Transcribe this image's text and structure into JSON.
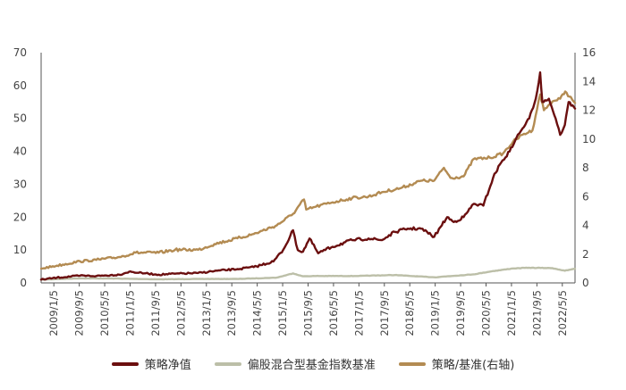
{
  "chart_data": {
    "type": "line",
    "x_tick_labels": [
      "2009/1/5",
      "2009/9/5",
      "2010/5/5",
      "2011/1/5",
      "2011/9/5",
      "2012/5/5",
      "2013/1/5",
      "2013/9/5",
      "2014/5/5",
      "2015/1/5",
      "2015/9/5",
      "2016/5/5",
      "2017/1/5",
      "2017/9/5",
      "2018/5/5",
      "2019/1/5",
      "2019/9/5",
      "2020/5/5",
      "2021/1/5",
      "2021/9/5",
      "2022/5/5"
    ],
    "x_range": [
      "2009-01-05",
      "2022-07-31"
    ],
    "y_left": {
      "ticks": [
        0,
        10,
        20,
        30,
        40,
        50,
        60,
        70
      ],
      "lim": [
        0,
        70
      ]
    },
    "y_right": {
      "ticks": [
        0,
        2,
        4,
        6,
        8,
        10,
        12,
        14,
        16
      ],
      "lim": [
        0,
        16
      ]
    },
    "series": [
      {
        "name": "策略净值",
        "axis": "left",
        "color": "#6b0f0f",
        "points": [
          [
            "2009-01-05",
            1.0
          ],
          [
            "2009-06-01",
            1.6
          ],
          [
            "2010-01-01",
            2.2
          ],
          [
            "2010-06-01",
            2.1
          ],
          [
            "2011-01-01",
            2.5
          ],
          [
            "2011-04-01",
            3.4
          ],
          [
            "2011-09-01",
            2.9
          ],
          [
            "2012-01-01",
            2.5
          ],
          [
            "2012-06-01",
            2.8
          ],
          [
            "2013-01-01",
            3.0
          ],
          [
            "2013-06-01",
            3.6
          ],
          [
            "2014-01-01",
            4.2
          ],
          [
            "2014-06-01",
            4.8
          ],
          [
            "2014-12-01",
            6.5
          ],
          [
            "2015-03-01",
            10.0
          ],
          [
            "2015-06-01",
            16.0
          ],
          [
            "2015-07-15",
            10.0
          ],
          [
            "2015-09-01",
            9.5
          ],
          [
            "2015-11-01",
            13.5
          ],
          [
            "2016-01-20",
            9.0
          ],
          [
            "2016-06-01",
            11.0
          ],
          [
            "2016-12-01",
            13.0
          ],
          [
            "2017-05-01",
            13.5
          ],
          [
            "2017-09-01",
            13.0
          ],
          [
            "2018-01-01",
            15.5
          ],
          [
            "2018-05-01",
            16.5
          ],
          [
            "2018-09-01",
            16.5
          ],
          [
            "2019-01-01",
            14.0
          ],
          [
            "2019-03-01",
            17.0
          ],
          [
            "2019-05-01",
            20.0
          ],
          [
            "2019-07-01",
            18.5
          ],
          [
            "2019-10-01",
            20.0
          ],
          [
            "2020-01-01",
            24.0
          ],
          [
            "2020-04-01",
            23.5
          ],
          [
            "2020-07-01",
            32.0
          ],
          [
            "2020-09-01",
            36.0
          ],
          [
            "2020-12-01",
            40.0
          ],
          [
            "2021-02-01",
            44.0
          ],
          [
            "2021-04-01",
            47.0
          ],
          [
            "2021-06-01",
            50.0
          ],
          [
            "2021-08-01",
            56.0
          ],
          [
            "2021-09-10",
            64.0
          ],
          [
            "2021-10-01",
            55.0
          ],
          [
            "2021-12-01",
            56.0
          ],
          [
            "2022-02-01",
            50.0
          ],
          [
            "2022-03-15",
            45.0
          ],
          [
            "2022-04-27",
            48.0
          ],
          [
            "2022-06-01",
            55.0
          ],
          [
            "2022-07-31",
            53.0
          ]
        ]
      },
      {
        "name": "偏股混合型基金指数基准",
        "axis": "left",
        "color": "#bcbfa8",
        "points": [
          [
            "2009-01-05",
            1.0
          ],
          [
            "2010-01-01",
            1.4
          ],
          [
            "2011-01-01",
            1.3
          ],
          [
            "2012-01-01",
            1.1
          ],
          [
            "2013-01-01",
            1.2
          ],
          [
            "2014-01-01",
            1.2
          ],
          [
            "2015-01-01",
            1.6
          ],
          [
            "2015-06-01",
            2.9
          ],
          [
            "2015-09-01",
            2.0
          ],
          [
            "2016-01-01",
            2.1
          ],
          [
            "2017-01-01",
            2.1
          ],
          [
            "2018-01-01",
            2.4
          ],
          [
            "2018-06-01",
            2.1
          ],
          [
            "2019-01-01",
            1.7
          ],
          [
            "2020-01-01",
            2.6
          ],
          [
            "2020-07-01",
            3.6
          ],
          [
            "2021-01-01",
            4.4
          ],
          [
            "2021-06-01",
            4.6
          ],
          [
            "2022-01-01",
            4.5
          ],
          [
            "2022-04-27",
            3.7
          ],
          [
            "2022-07-31",
            4.3
          ]
        ]
      },
      {
        "name": "策略/基准(右轴)",
        "axis": "right",
        "color": "#b38b52",
        "points": [
          [
            "2009-01-05",
            1.0
          ],
          [
            "2009-06-01",
            1.2
          ],
          [
            "2010-01-01",
            1.5
          ],
          [
            "2010-06-01",
            1.6
          ],
          [
            "2011-01-01",
            1.8
          ],
          [
            "2011-06-01",
            2.1
          ],
          [
            "2012-01-01",
            2.1
          ],
          [
            "2012-06-01",
            2.3
          ],
          [
            "2013-01-01",
            2.3
          ],
          [
            "2013-06-01",
            2.7
          ],
          [
            "2014-01-01",
            3.1
          ],
          [
            "2014-06-01",
            3.4
          ],
          [
            "2015-01-01",
            4.0
          ],
          [
            "2015-06-01",
            4.8
          ],
          [
            "2015-09-10",
            5.8
          ],
          [
            "2015-10-01",
            5.1
          ],
          [
            "2016-01-01",
            5.3
          ],
          [
            "2016-06-01",
            5.6
          ],
          [
            "2016-12-01",
            5.9
          ],
          [
            "2017-05-01",
            6.0
          ],
          [
            "2017-09-01",
            6.3
          ],
          [
            "2018-03-01",
            6.6
          ],
          [
            "2018-09-01",
            7.1
          ],
          [
            "2019-01-01",
            7.1
          ],
          [
            "2019-04-01",
            8.0
          ],
          [
            "2019-06-01",
            7.3
          ],
          [
            "2019-10-01",
            7.4
          ],
          [
            "2020-01-01",
            8.6
          ],
          [
            "2020-06-01",
            8.7
          ],
          [
            "2020-10-01",
            9.0
          ],
          [
            "2021-01-01",
            9.8
          ],
          [
            "2021-04-01",
            10.3
          ],
          [
            "2021-07-01",
            10.6
          ],
          [
            "2021-09-10",
            13.1
          ],
          [
            "2021-10-15",
            12.0
          ],
          [
            "2022-01-01",
            12.6
          ],
          [
            "2022-03-15",
            12.8
          ],
          [
            "2022-05-01",
            13.3
          ],
          [
            "2022-07-31",
            12.5
          ]
        ]
      }
    ],
    "legend_position": "bottom",
    "grid": false
  }
}
